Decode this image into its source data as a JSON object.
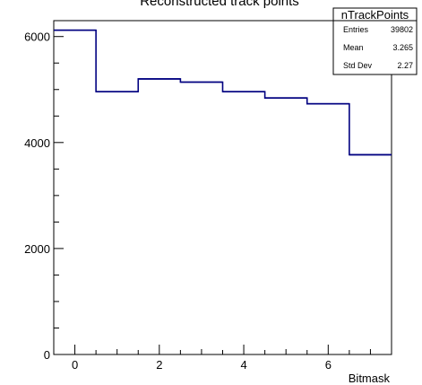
{
  "chart_data": {
    "type": "histogram",
    "title": "Reconstructed track points",
    "xlabel": "Bitmask",
    "ylabel": "",
    "xlim": [
      -0.5,
      7.5
    ],
    "ylim": [
      0,
      6300
    ],
    "x_ticks": [
      0,
      2,
      4,
      6
    ],
    "y_ticks": [
      0,
      2000,
      4000,
      6000
    ],
    "bin_edges": [
      -0.5,
      0.5,
      1.5,
      2.5,
      3.5,
      4.5,
      5.5,
      6.5,
      7.5
    ],
    "values": [
      6120,
      4960,
      5200,
      5140,
      4960,
      4840,
      4730,
      3770
    ],
    "line_color": "#000080",
    "grid": false
  },
  "stats_box": {
    "name": "nTrackPoints",
    "rows": [
      {
        "label": "Entries",
        "value": "39802"
      },
      {
        "label": "Mean",
        "value": "3.265"
      },
      {
        "label": "Std Dev",
        "value": "2.27"
      }
    ]
  }
}
